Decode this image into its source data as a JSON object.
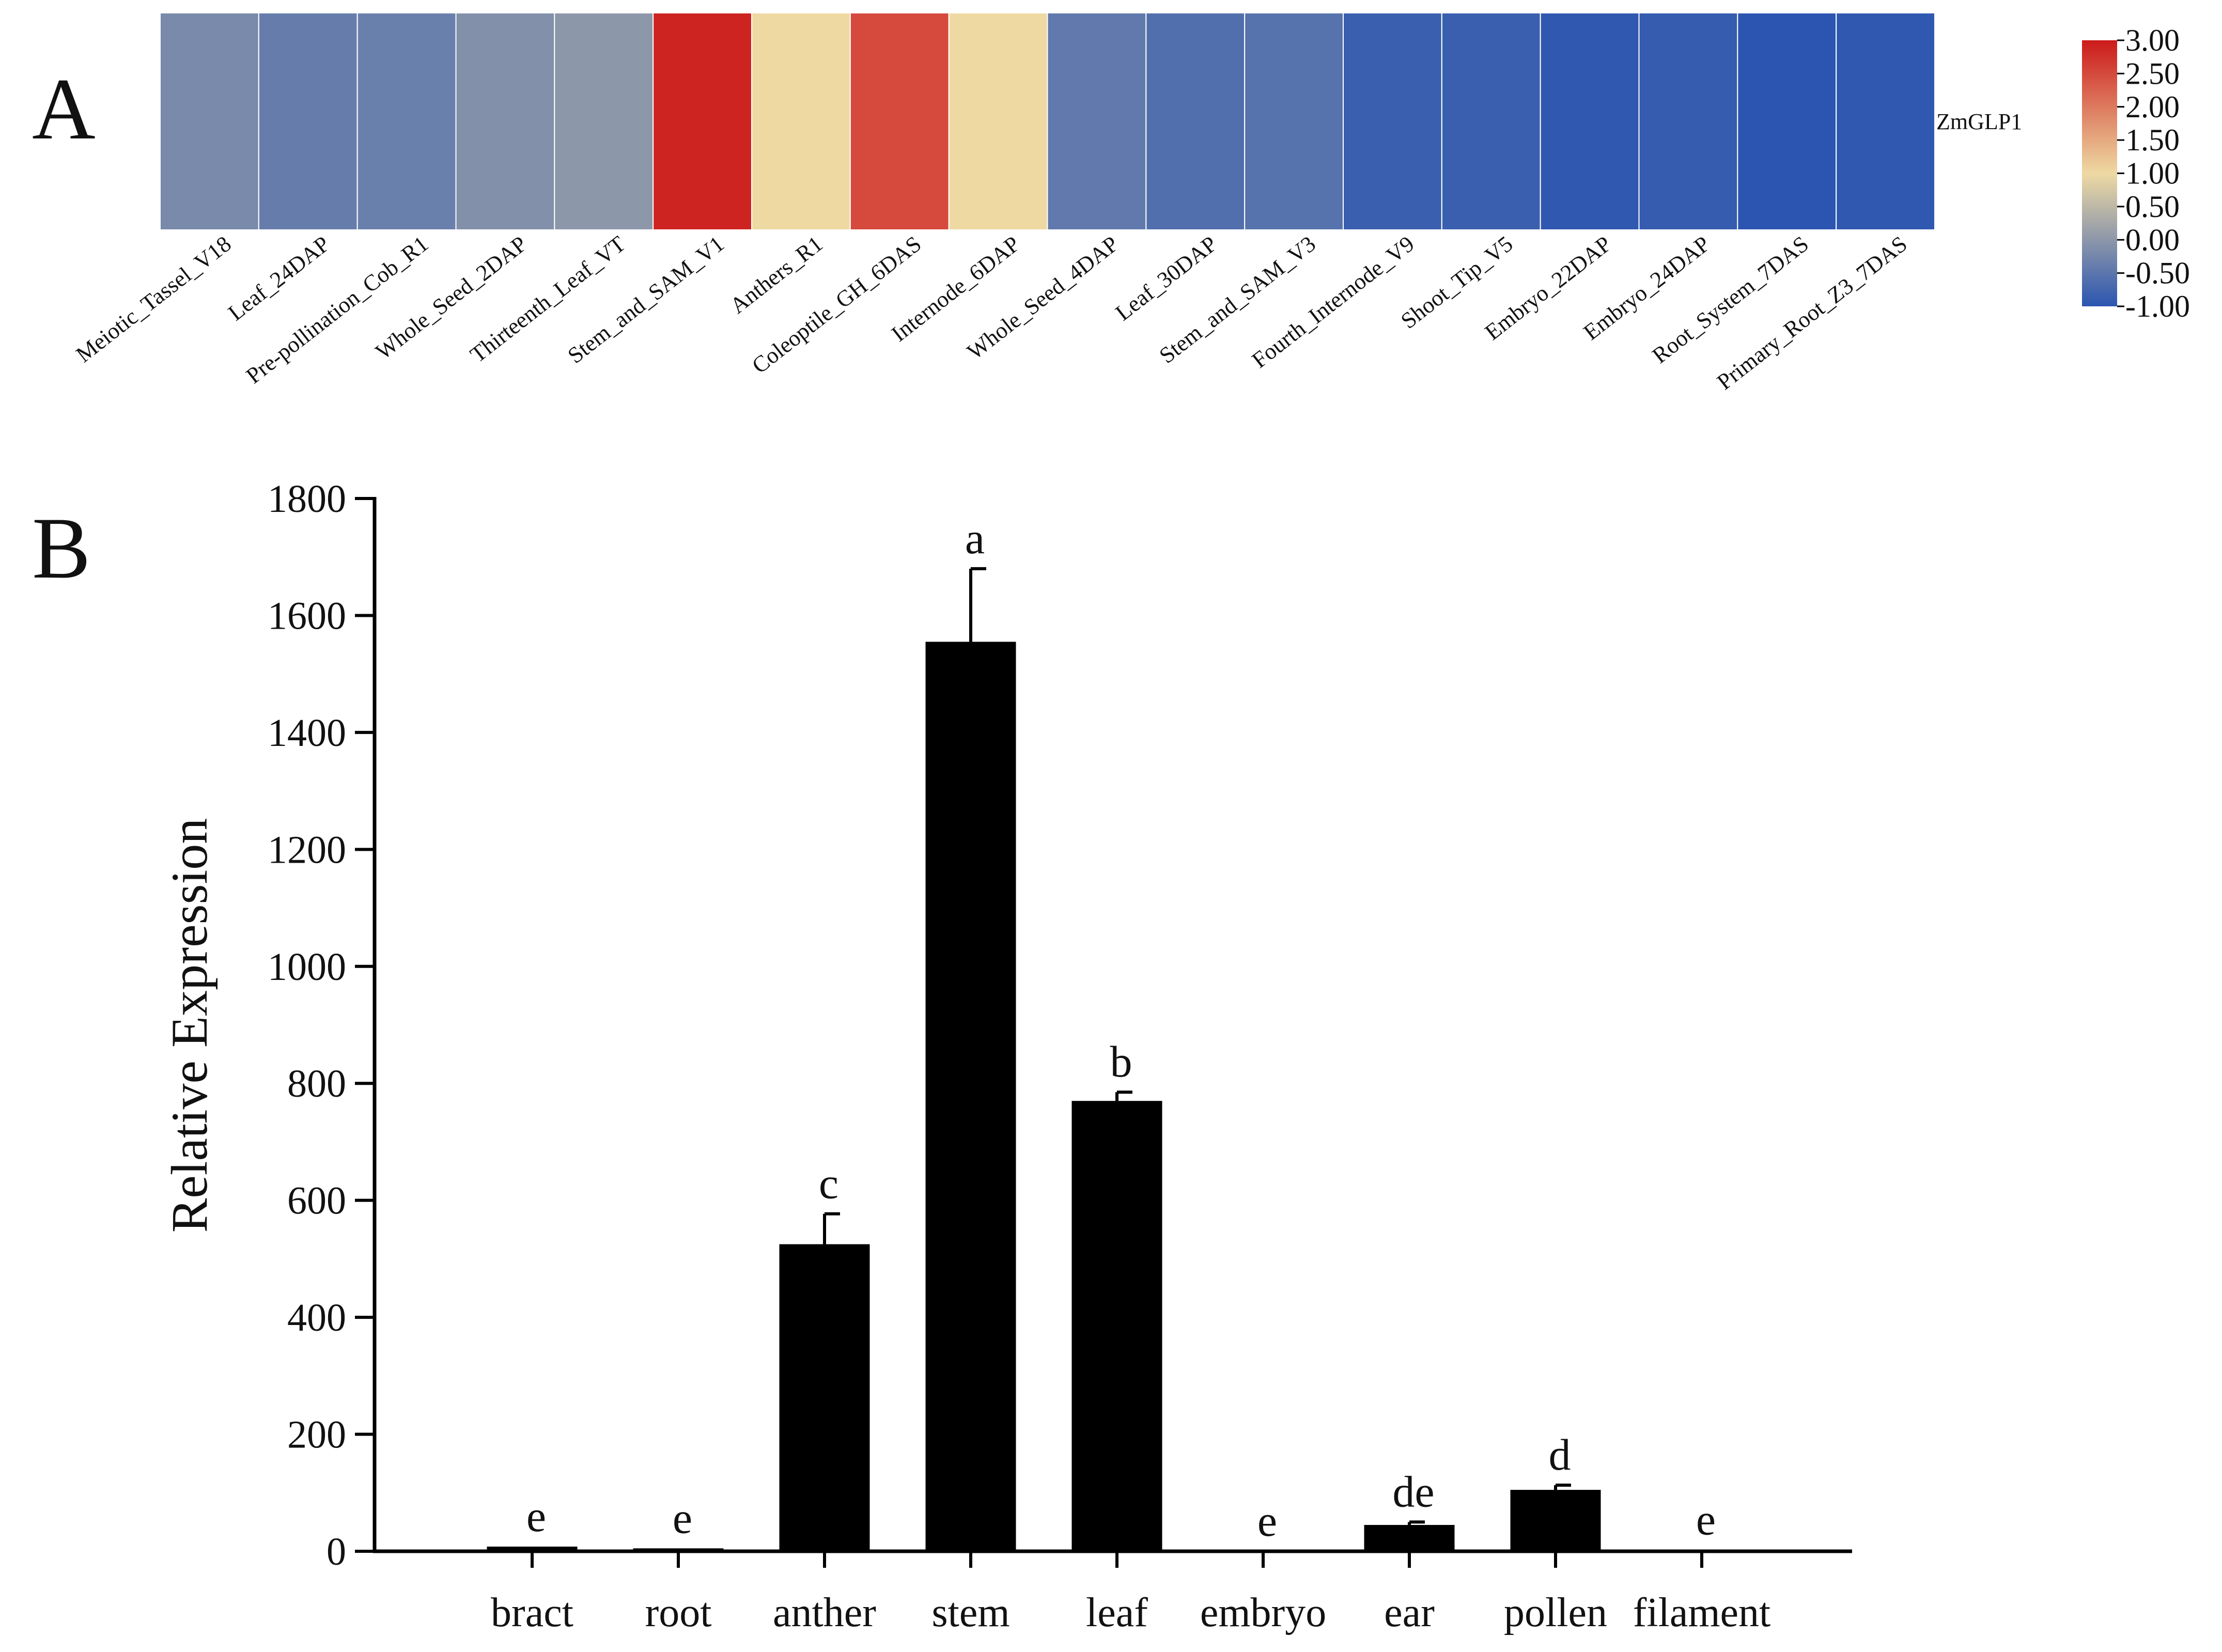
{
  "figure": {
    "panel_a_label": "A",
    "panel_b_label": "B"
  },
  "chart_data": [
    {
      "type": "heatmap",
      "panel": "A",
      "row_label": "ZmGLP1",
      "columns": [
        "Meiotic_Tassel_V18",
        "Leaf_24DAP",
        "Pre-pollination_Cob_R1",
        "Whole_Seed_2DAP",
        "Thirteenth_Leaf_VT",
        "Stem_and_SAM_V1",
        "Anthers_R1",
        "Coleoptile_GH_6DAS",
        "Internode_6DAP",
        "Whole_Seed_4DAP",
        "Leaf_30DAP",
        "Stem_and_SAM_V3",
        "Fourth_Internode_V9",
        "Shoot_Tip_V5",
        "Embryo_22DAP",
        "Embryo_24DAP",
        "Root_System_7DAS",
        "Primary_Root_Z3_7DAS"
      ],
      "values": [
        -0.2,
        -0.4,
        -0.35,
        -0.1,
        0.0,
        2.9,
        1.0,
        2.5,
        1.0,
        -0.45,
        -0.6,
        -0.55,
        -0.85,
        -0.85,
        -0.95,
        -0.9,
        -1.0,
        -0.95
      ],
      "colorbar": {
        "min": -1.0,
        "max": 3.0,
        "colors": [
          "#2b55b0",
          "#eed9a3",
          "#cc1a1a"
        ],
        "ticks": [
          "3.00",
          "2.50",
          "2.00",
          "1.50",
          "1.00",
          "0.50",
          "0.00",
          "-0.50",
          "-1.00"
        ]
      }
    },
    {
      "type": "bar",
      "panel": "B",
      "categories": [
        "bract",
        "root",
        "anther",
        "stem",
        "leaf",
        "embryo",
        "ear",
        "pollen",
        "filament"
      ],
      "values": [
        8,
        5,
        525,
        1555,
        770,
        0,
        45,
        105,
        2
      ],
      "errors": [
        0,
        0,
        52,
        125,
        15,
        0,
        5,
        8,
        0
      ],
      "significance": [
        "e",
        "e",
        "c",
        "a",
        "b",
        "e",
        "de",
        "d",
        "e"
      ],
      "ylabel": "Relative Expression",
      "xlabel": "",
      "ylim": [
        0,
        1800
      ],
      "yticks": [
        "0",
        "200",
        "400",
        "600",
        "800",
        "1000",
        "1200",
        "1400",
        "1600",
        "1800"
      ],
      "bar_color": "#000000"
    }
  ]
}
